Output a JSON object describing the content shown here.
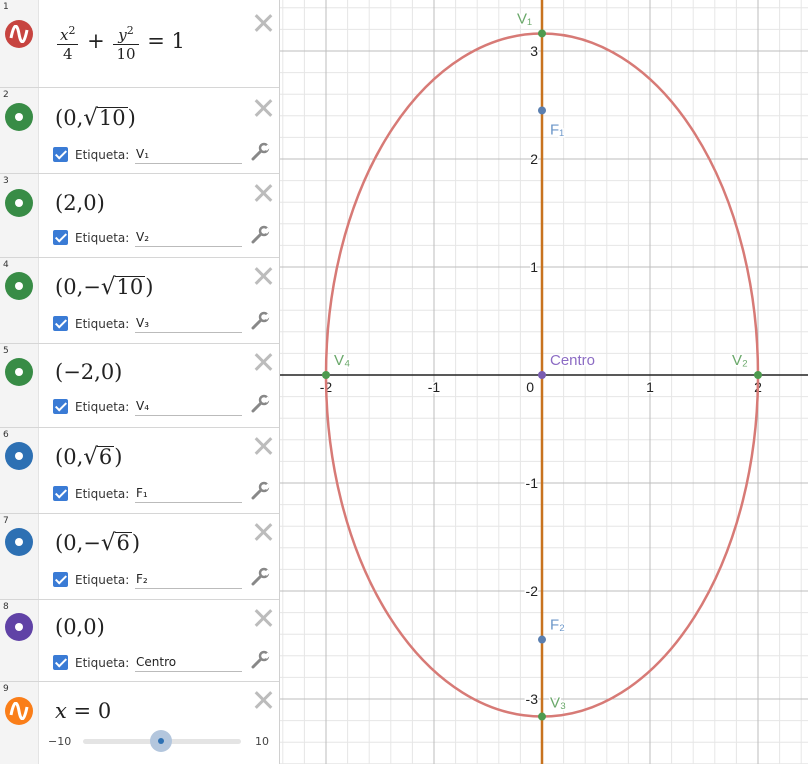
{
  "expressions": [
    {
      "num": "1",
      "kind": "function",
      "color": "#c74440",
      "equation": {
        "x": "x",
        "y": "y",
        "exp": "2",
        "den_x": "4",
        "den_y": "10",
        "plus": "+",
        "eq": "=",
        "rhs": "1"
      }
    },
    {
      "num": "2",
      "kind": "point",
      "color": "#388c46",
      "open": "(",
      "a": "0,",
      "radical": "√",
      "b": "10",
      "close": ")",
      "label_caption": "Etiqueta:",
      "label_value": "V₁"
    },
    {
      "num": "3",
      "kind": "point",
      "color": "#388c46",
      "text": "(2,0)",
      "label_caption": "Etiqueta:",
      "label_value": "V₂"
    },
    {
      "num": "4",
      "kind": "point",
      "color": "#388c46",
      "open": "(",
      "a": "0,−",
      "radical": "√",
      "b": "10",
      "close": ")",
      "label_caption": "Etiqueta:",
      "label_value": "V₃"
    },
    {
      "num": "5",
      "kind": "point",
      "color": "#388c46",
      "text": "(−2,0)",
      "label_caption": "Etiqueta:",
      "label_value": "V₄"
    },
    {
      "num": "6",
      "kind": "point",
      "color": "#2d70b3",
      "open": "(",
      "a": "0,",
      "radical": "√",
      "b": "6",
      "close": ")",
      "label_caption": "Etiqueta:",
      "label_value": "F₁"
    },
    {
      "num": "7",
      "kind": "point",
      "color": "#2d70b3",
      "open": "(",
      "a": "0,−",
      "radical": "√",
      "b": "6",
      "close": ")",
      "label_caption": "Etiqueta:",
      "label_value": "F₂"
    },
    {
      "num": "8",
      "kind": "point",
      "color": "#6042a6",
      "text": "(0,0)",
      "label_caption": "Etiqueta:",
      "label_value": "Centro"
    },
    {
      "num": "9",
      "kind": "function",
      "color": "#fa7e19",
      "equation": {
        "lhs": "x",
        "eq": "=",
        "rhs": "0"
      },
      "slider": {
        "min": "−10",
        "max": "10",
        "value": 0
      }
    }
  ],
  "graph": {
    "x_ticks": [
      "-2",
      "-1",
      "0",
      "1",
      "2"
    ],
    "y_ticks_pos": [
      "1",
      "2",
      "3"
    ],
    "y_ticks_neg": [
      "-1",
      "-2",
      "-3"
    ],
    "labels": {
      "v1": "V₁",
      "v2": "V₂",
      "v3": "V₃",
      "v4": "V₄",
      "f1": "F₁",
      "f2": "F₂",
      "centro": "Centro"
    },
    "colors": {
      "ellipse": "#d77a76",
      "line": "#c8731f",
      "vertex": "#4e9a4f",
      "focus": "#5a7fb0",
      "center": "#7a5cb0",
      "vertex_label": "#6aa86a",
      "focus_label": "#6b96c8",
      "center_label": "#8c6cc4"
    }
  }
}
